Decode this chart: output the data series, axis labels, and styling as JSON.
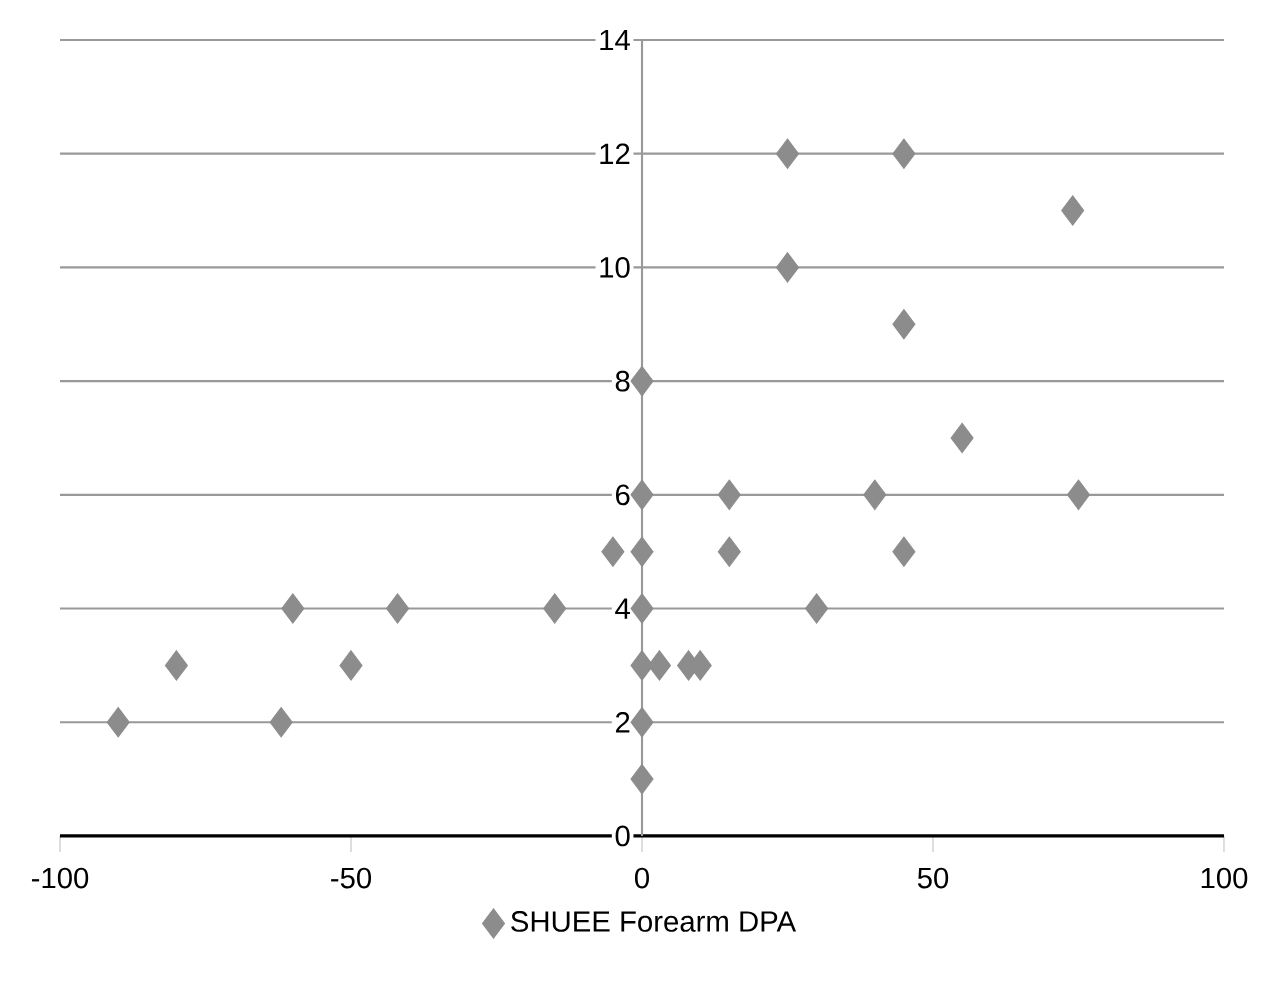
{
  "chart_data": {
    "type": "scatter",
    "series": [
      {
        "name": "SHUEE Forearm DPA",
        "color": "#8c8c8c",
        "x": [
          -90,
          -80,
          -62,
          -60,
          -50,
          -42,
          -15,
          -5,
          0,
          0,
          0,
          0,
          0,
          0,
          0,
          3,
          8,
          10,
          15,
          15,
          30,
          40,
          45,
          55,
          75,
          25,
          45,
          25,
          45,
          74
        ],
        "values": [
          2,
          3,
          2,
          4,
          3,
          4,
          4,
          5,
          1,
          2,
          3,
          4,
          5,
          6,
          8,
          3,
          3,
          3,
          6,
          5,
          4,
          6,
          5,
          7,
          6,
          12,
          12,
          10,
          9,
          11
        ]
      }
    ],
    "xlim": [
      -100,
      100
    ],
    "xticks": [
      -100,
      -50,
      0,
      50,
      100
    ],
    "ylim": [
      0,
      14
    ],
    "yticks": [
      0,
      2,
      4,
      6,
      8,
      10,
      12,
      14
    ],
    "grid": "y",
    "legend": "bottom",
    "marker": "diamond"
  }
}
